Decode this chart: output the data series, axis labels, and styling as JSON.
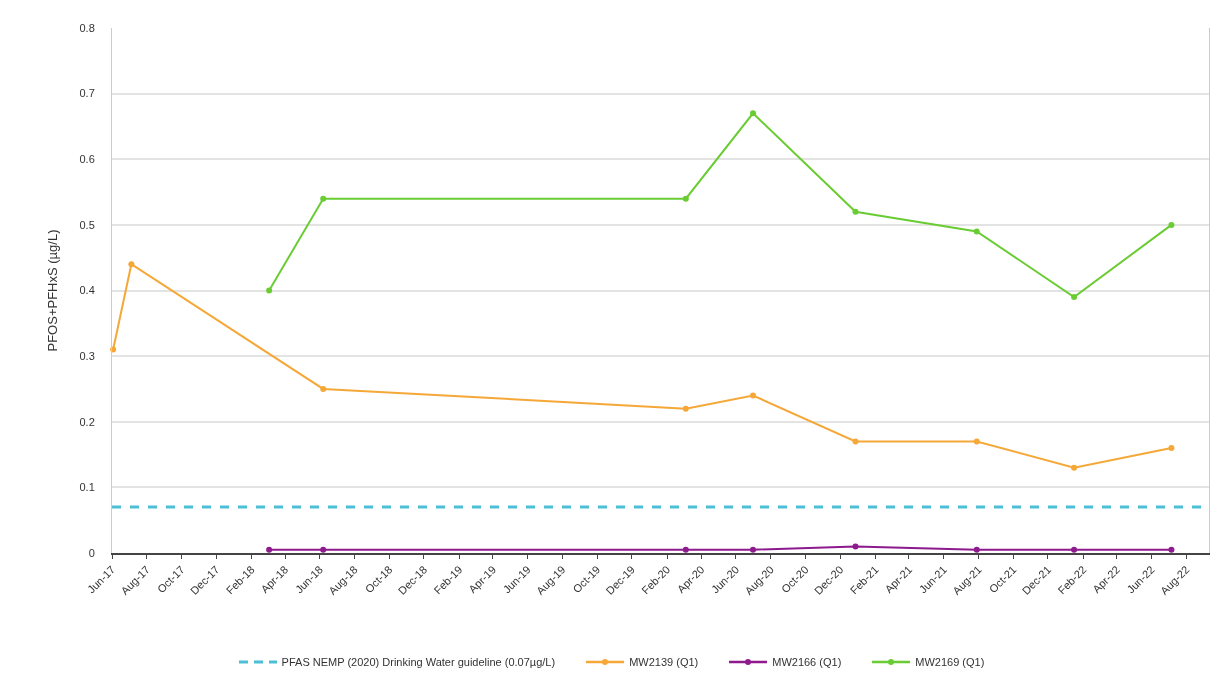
{
  "chart_data": {
    "type": "line",
    "ylabel": "PFOS+PFHxS (µg/L)",
    "xlim": [
      "2017-06-01",
      "2022-09-10"
    ],
    "xticks": [
      {
        "value": "2017-06-01",
        "label": "Jun-17"
      },
      {
        "value": "2017-08-01",
        "label": "Aug-17"
      },
      {
        "value": "2017-10-01",
        "label": "Oct-17"
      },
      {
        "value": "2017-12-01",
        "label": "Dec-17"
      },
      {
        "value": "2018-02-01",
        "label": "Feb-18"
      },
      {
        "value": "2018-04-01",
        "label": "Apr-18"
      },
      {
        "value": "2018-06-01",
        "label": "Jun-18"
      },
      {
        "value": "2018-08-01",
        "label": "Aug-18"
      },
      {
        "value": "2018-10-01",
        "label": "Oct-18"
      },
      {
        "value": "2018-12-01",
        "label": "Dec-18"
      },
      {
        "value": "2019-02-01",
        "label": "Feb-19"
      },
      {
        "value": "2019-04-01",
        "label": "Apr-19"
      },
      {
        "value": "2019-06-01",
        "label": "Jun-19"
      },
      {
        "value": "2019-08-01",
        "label": "Aug-19"
      },
      {
        "value": "2019-10-01",
        "label": "Oct-19"
      },
      {
        "value": "2019-12-01",
        "label": "Dec-19"
      },
      {
        "value": "2020-02-01",
        "label": "Feb-20"
      },
      {
        "value": "2020-04-01",
        "label": "Apr-20"
      },
      {
        "value": "2020-06-01",
        "label": "Jun-20"
      },
      {
        "value": "2020-08-01",
        "label": "Aug-20"
      },
      {
        "value": "2020-10-01",
        "label": "Oct-20"
      },
      {
        "value": "2020-12-01",
        "label": "Dec-20"
      },
      {
        "value": "2021-02-01",
        "label": "Feb-21"
      },
      {
        "value": "2021-04-01",
        "label": "Apr-21"
      },
      {
        "value": "2021-06-01",
        "label": "Jun-21"
      },
      {
        "value": "2021-08-01",
        "label": "Aug-21"
      },
      {
        "value": "2021-10-01",
        "label": "Oct-21"
      },
      {
        "value": "2021-12-01",
        "label": "Dec-21"
      },
      {
        "value": "2022-02-01",
        "label": "Feb-22"
      },
      {
        "value": "2022-04-01",
        "label": "Apr-22"
      },
      {
        "value": "2022-06-01",
        "label": "Jun-22"
      },
      {
        "value": "2022-08-01",
        "label": "Aug-22"
      }
    ],
    "ylim": [
      0,
      0.8
    ],
    "yticks": [
      0,
      0.1,
      0.2,
      0.3,
      0.4,
      0.5,
      0.6,
      0.7,
      0.8
    ],
    "grid": "y",
    "legend": "bottom",
    "marker": "circle",
    "line_style": "solid",
    "ref_lines": [
      {
        "axis": "y",
        "value": 0.07,
        "label": "PFAS NEMP (2020) Drinking Water guideline (0.07µg/L)",
        "color": "#4bbfd6",
        "line_style": "dashed"
      }
    ],
    "series": [
      {
        "name": "MW2139 (Q1)",
        "color": "#f5a838",
        "x": [
          "2017-06-03",
          "2017-07-05",
          "2018-06-07",
          "2020-03-05",
          "2020-07-01",
          "2020-12-28",
          "2021-07-29",
          "2022-01-16",
          "2022-07-06"
        ],
        "values": [
          0.31,
          0.44,
          0.25,
          0.22,
          0.24,
          0.17,
          0.17,
          0.13,
          0.16
        ]
      },
      {
        "name": "MW2166 (Q1)",
        "color": "#8e1a8e",
        "x": [
          "2018-03-04",
          "2018-06-07",
          "2020-03-05",
          "2020-07-01",
          "2020-12-28",
          "2021-07-29",
          "2022-01-16",
          "2022-07-06"
        ],
        "values": [
          0.005,
          0.005,
          0.005,
          0.005,
          0.01,
          0.005,
          0.005,
          0.005
        ]
      },
      {
        "name": "MW2169 (Q1)",
        "color": "#6acc33",
        "x": [
          "2018-03-04",
          "2018-06-07",
          "2020-03-05",
          "2020-07-01",
          "2020-12-28",
          "2021-07-29",
          "2022-01-16",
          "2022-07-06"
        ],
        "values": [
          0.4,
          0.54,
          0.54,
          0.67,
          0.52,
          0.49,
          0.39,
          0.5
        ]
      }
    ]
  }
}
